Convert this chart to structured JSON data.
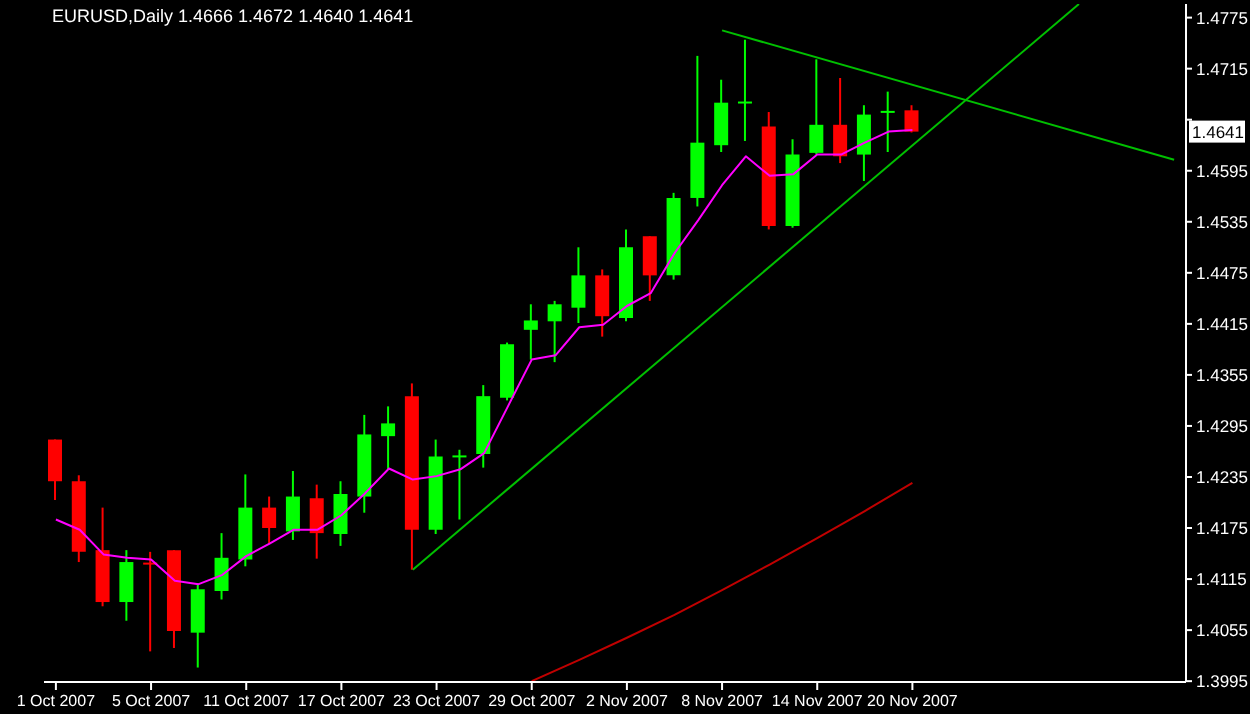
{
  "chart_data": {
    "type": "candlestick",
    "title": "EURUSD,Daily 1.4666 1.4672 1.4640 1.4641",
    "categories": [
      "1 Oct 2007",
      null,
      null,
      null,
      "5 Oct 2007",
      null,
      null,
      null,
      "11 Oct 2007",
      null,
      null,
      null,
      "17 Oct 2007",
      null,
      null,
      null,
      "23 Oct 2007",
      null,
      null,
      null,
      "29 Oct 2007",
      null,
      null,
      null,
      "2 Nov 2007",
      null,
      null,
      null,
      "8 Nov 2007",
      null,
      null,
      null,
      "14 Nov 2007",
      null,
      null,
      null,
      "20 Nov 2007",
      null,
      null,
      null,
      null,
      null,
      null,
      null,
      null,
      null,
      null,
      null
    ],
    "ohlc": [
      [
        1.4279,
        1.4279,
        1.4208,
        1.423
      ],
      [
        1.423,
        1.4237,
        1.4135,
        1.4147
      ],
      [
        1.4149,
        1.4199,
        1.4083,
        1.4088
      ],
      [
        1.4088,
        1.4149,
        1.4066,
        1.4135
      ],
      [
        1.4133,
        1.4147,
        1.403,
        1.4132
      ],
      [
        1.4149,
        1.4149,
        1.4034,
        1.4054
      ],
      [
        1.4052,
        1.411,
        1.4011,
        1.4103
      ],
      [
        1.4101,
        1.4169,
        1.4091,
        1.414
      ],
      [
        1.4138,
        1.4238,
        1.413,
        1.4199
      ],
      [
        1.4199,
        1.4212,
        1.4157,
        1.4175
      ],
      [
        1.4171,
        1.4242,
        1.4161,
        1.4212
      ],
      [
        1.421,
        1.4226,
        1.4139,
        1.4169
      ],
      [
        1.4168,
        1.423,
        1.4154,
        1.4215
      ],
      [
        1.4212,
        1.4308,
        1.4193,
        1.4285
      ],
      [
        1.4283,
        1.4318,
        1.4244,
        1.4298
      ],
      [
        1.433,
        1.4345,
        1.4126,
        1.4173
      ],
      [
        1.4173,
        1.4279,
        1.4168,
        1.4259
      ],
      [
        1.4258,
        1.4267,
        1.4185,
        1.4259
      ],
      [
        1.4262,
        1.4343,
        1.4246,
        1.433
      ],
      [
        1.4328,
        1.4393,
        1.4325,
        1.4391
      ],
      [
        1.4408,
        1.4438,
        1.4373,
        1.4419
      ],
      [
        1.4418,
        1.4442,
        1.437,
        1.4438
      ],
      [
        1.4434,
        1.4505,
        1.4416,
        1.4472
      ],
      [
        1.4472,
        1.4479,
        1.44,
        1.4424
      ],
      [
        1.4422,
        1.4526,
        1.4418,
        1.4505
      ],
      [
        1.4518,
        1.4518,
        1.4442,
        1.4472
      ],
      [
        1.4472,
        1.4569,
        1.4467,
        1.4563
      ],
      [
        1.4563,
        1.473,
        1.4553,
        1.4628
      ],
      [
        1.4625,
        1.4702,
        1.4617,
        1.4675
      ],
      [
        1.4674,
        1.4749,
        1.463,
        1.4675
      ],
      [
        1.4647,
        1.4664,
        1.4526,
        1.453
      ],
      [
        1.453,
        1.4632,
        1.4528,
        1.4614
      ],
      [
        1.4616,
        1.4726,
        1.4614,
        1.4649
      ],
      [
        1.4649,
        1.4704,
        1.4604,
        1.4612
      ],
      [
        1.4614,
        1.4672,
        1.4583,
        1.4661
      ],
      [
        1.4663,
        1.4688,
        1.4617,
        1.4664
      ],
      [
        1.4666,
        1.4672,
        1.464,
        1.4641
      ],
      null,
      null,
      null,
      null,
      null,
      null,
      null,
      null,
      null,
      null,
      null
    ],
    "colors": [
      "#ff0000",
      "#ff0000",
      "#ff0000",
      "#00ff00",
      "#ff0000",
      "#ff0000",
      "#00ff00",
      "#00ff00",
      "#00ff00",
      "#ff0000",
      "#00ff00",
      "#ff0000",
      "#00ff00",
      "#00ff00",
      "#00ff00",
      "#ff0000",
      "#00ff00",
      "#00ff00",
      "#00ff00",
      "#00ff00",
      "#00ff00",
      "#00ff00",
      "#00ff00",
      "#ff0000",
      "#00ff00",
      "#ff0000",
      "#00ff00",
      "#00ff00",
      "#00ff00",
      "#00ff00",
      "#ff0000",
      "#00ff00",
      "#00ff00",
      "#ff0000",
      "#00ff00",
      "#00ff00",
      "#ff0000",
      null,
      null,
      null,
      null,
      null,
      null,
      null,
      null,
      null,
      null,
      null
    ],
    "series": [
      {
        "type": "line",
        "color": "#ff00ff",
        "values": [
          1.4185,
          1.4173,
          1.4144,
          1.414,
          1.4138,
          1.4113,
          1.4109,
          1.412,
          1.4142,
          1.4157,
          1.4173,
          1.4173,
          1.419,
          1.4216,
          1.4245,
          1.4232,
          1.4236,
          1.4244,
          1.4263,
          1.4318,
          1.4373,
          1.4378,
          1.4411,
          1.4414,
          1.4436,
          1.4451,
          1.4498,
          1.4537,
          1.4578,
          1.4612,
          1.4589,
          1.4591,
          1.4614,
          1.4614,
          1.4628,
          1.4641,
          1.4643,
          null,
          null,
          null,
          null,
          null,
          null,
          null,
          null,
          null,
          null,
          null
        ]
      },
      {
        "type": "line",
        "color": "#c00000",
        "values": [
          null,
          null,
          null,
          null,
          null,
          null,
          null,
          null,
          null,
          null,
          null,
          null,
          null,
          null,
          null,
          null,
          null,
          null,
          null,
          null,
          1.3995,
          null,
          1.402,
          null,
          1.4046,
          null,
          1.4073,
          null,
          1.4102,
          null,
          1.4132,
          null,
          1.4163,
          null,
          1.4195,
          null,
          1.4228,
          null,
          null,
          null,
          null,
          null,
          null,
          null,
          null,
          null,
          null,
          null
        ]
      },
      {
        "type": "line",
        "color": "#00c000",
        "values": [
          null,
          null,
          null,
          null,
          null,
          null,
          null,
          null,
          null,
          null,
          null,
          null,
          null,
          null,
          null,
          1.4126,
          null,
          null,
          null,
          null,
          null,
          null,
          null,
          null,
          null,
          null,
          null,
          null,
          null,
          null,
          null,
          null,
          null,
          null,
          null,
          null,
          null,
          null,
          null,
          null,
          null,
          null,
          null,
          1.4791,
          null,
          null,
          null,
          null
        ]
      },
      {
        "type": "line",
        "color": "#00c000",
        "values": [
          null,
          null,
          null,
          null,
          null,
          null,
          null,
          null,
          null,
          null,
          null,
          null,
          null,
          null,
          null,
          null,
          null,
          null,
          null,
          null,
          null,
          null,
          null,
          null,
          null,
          null,
          null,
          null,
          1.476,
          null,
          null,
          null,
          null,
          null,
          null,
          null,
          null,
          null,
          null,
          null,
          null,
          null,
          null,
          null,
          null,
          null,
          null,
          1.4608
        ]
      }
    ],
    "ylim": [
      1.3994,
      1.4791
    ],
    "yticks": [
      1.3995,
      1.4055,
      1.4115,
      1.4175,
      1.4235,
      1.4295,
      1.4355,
      1.4415,
      1.4475,
      1.4535,
      1.4595,
      {
        "value": 1.4655,
        "label": null
      },
      1.4715,
      1.4775
    ],
    "annotations": [
      {
        "text": "1.4641",
        "y": 1.4641
      }
    ],
    "grid": false
  }
}
